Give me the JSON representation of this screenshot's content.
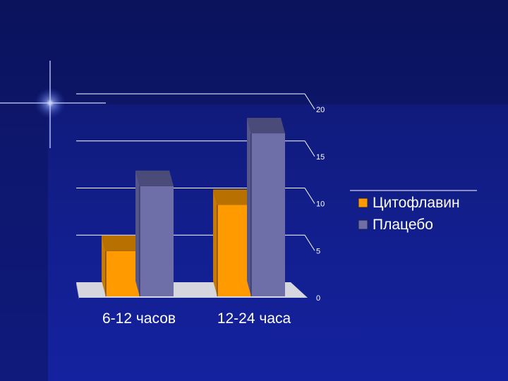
{
  "chart_data": {
    "type": "bar",
    "categories": [
      "6-12 часов",
      "12-24 часа"
    ],
    "series": [
      {
        "name": "Цитофлавин",
        "values": [
          4.8,
          9.7
        ],
        "color": "#ff9a00"
      },
      {
        "name": "Плацебо",
        "values": [
          11.7,
          17.3
        ],
        "color": "#6e6fa8"
      }
    ],
    "ylim": [
      0,
      20
    ],
    "yticks": [
      "0",
      "5",
      "10",
      "15",
      "20"
    ],
    "grid": true,
    "legend": "right",
    "three_d": true
  },
  "theme": {
    "background": "#101a7a",
    "background_dark": "#0a1150",
    "text": "#ffffff"
  }
}
